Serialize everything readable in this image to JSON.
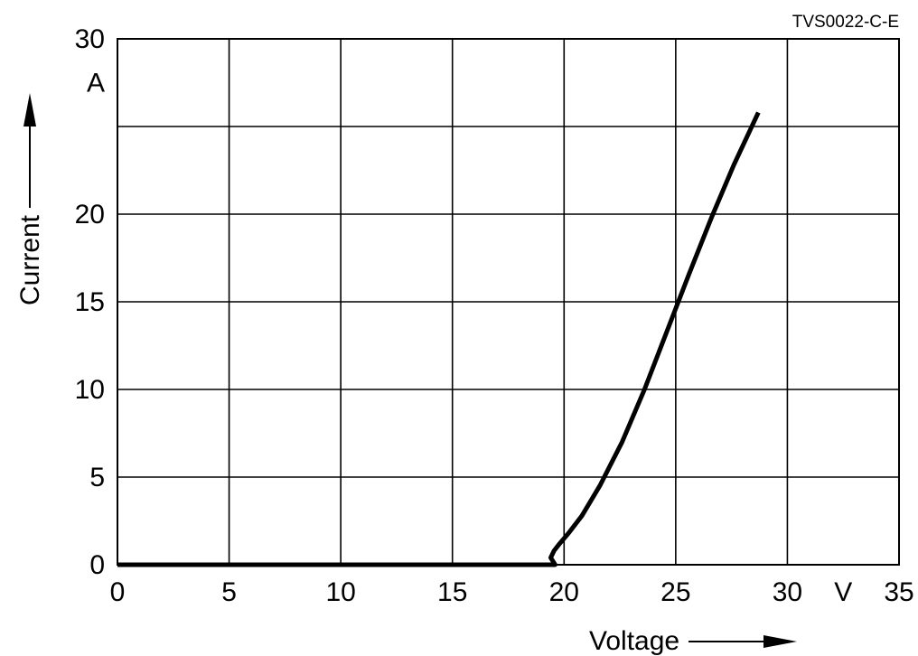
{
  "chart_data": {
    "type": "line",
    "figure_code": "TVS0022-C-E",
    "xlabel": "Voltage",
    "ylabel": "Current",
    "x_unit": "V",
    "y_unit": "A",
    "xlim": [
      0,
      35
    ],
    "ylim": [
      0,
      30
    ],
    "x_ticks": [
      "0",
      "5",
      "10",
      "15",
      "20",
      "25",
      "30",
      "35"
    ],
    "y_ticks": [
      "0",
      "5",
      "10",
      "15",
      "20",
      "30"
    ],
    "grid": true,
    "series": [
      {
        "x": [
          0,
          19.4,
          19.6,
          19.4,
          19.55,
          19.8,
          20.2,
          20.8,
          21.6,
          22.6,
          23.6,
          24.6,
          25.6,
          26.6,
          27.6,
          28.7
        ],
        "y": [
          0,
          0,
          0,
          0.4,
          0.8,
          1.2,
          1.8,
          2.8,
          4.5,
          7.0,
          10.0,
          13.3,
          16.6,
          19.8,
          22.8,
          25.8
        ]
      }
    ]
  }
}
